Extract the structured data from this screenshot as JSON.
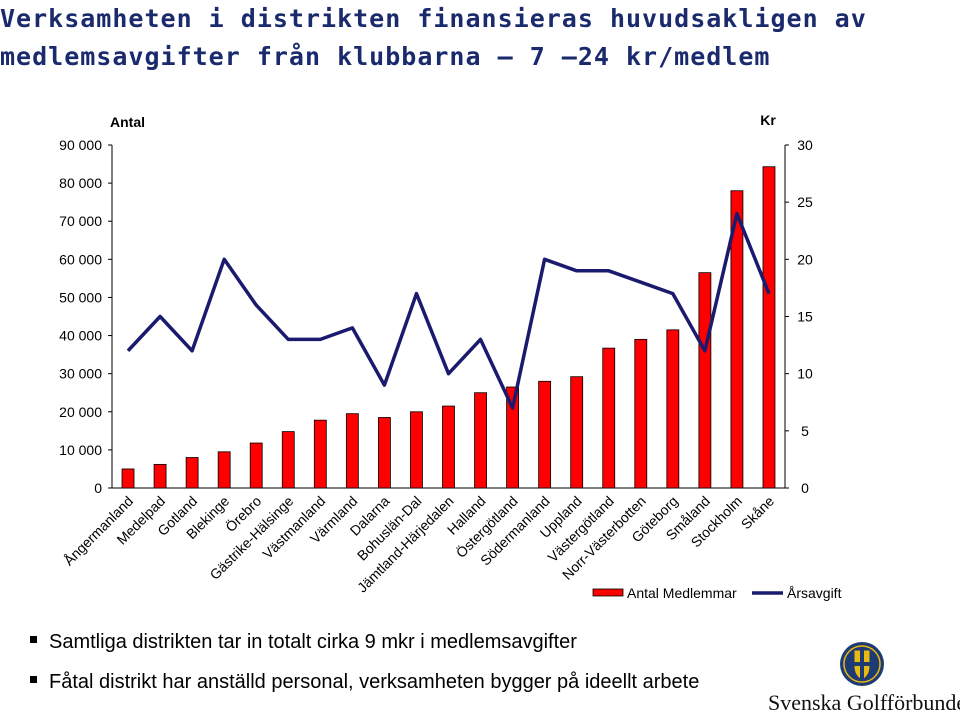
{
  "title": {
    "line1": "Verksamheten i distrikten finansieras huvudsakligen av",
    "line2": "medlemsavgifter från klubbarna — 7 –24 kr/medlem"
  },
  "chart_data": {
    "type": "bar",
    "categories": [
      "Ångermanland",
      "Medelpad",
      "Gotland",
      "Blekinge",
      "Örebro",
      "Gästrike-Hälsinge",
      "Västmanland",
      "Värmland",
      "Dalarna",
      "Bohuslän-Dal",
      "Jämtland-Härjedalen",
      "Halland",
      "Östergötland",
      "Södermanland",
      "Uppland",
      "Västergötland",
      "Norr-Västerbotten",
      "Göteborg",
      "Småland",
      "Stockholm",
      "Skåne"
    ],
    "left_axis": {
      "title": "Antal",
      "ylim": [
        0,
        90000
      ],
      "ticks": [
        "0",
        "10 000",
        "20 000",
        "30 000",
        "40 000",
        "50 000",
        "60 000",
        "70 000",
        "80 000",
        "90 000"
      ]
    },
    "right_axis": {
      "title": "Kr",
      "ylim": [
        0,
        30
      ],
      "ticks": [
        "0",
        "5",
        "10",
        "15",
        "20",
        "25",
        "30"
      ]
    },
    "series": [
      {
        "name": "Antal Medlemmar",
        "type": "bar",
        "axis": "left",
        "color": "#ff0000",
        "values": [
          5000,
          6200,
          8000,
          9500,
          11800,
          14800,
          17800,
          19500,
          18500,
          20000,
          21500,
          25000,
          26500,
          28000,
          29200,
          36700,
          39000,
          41500,
          56500,
          78000,
          84300
        ]
      },
      {
        "name": "Årsavgift",
        "type": "line",
        "axis": "right",
        "color": "#1a1a6e",
        "values": [
          12,
          15,
          12,
          20,
          16,
          13,
          13,
          14,
          9,
          17,
          10,
          13,
          7,
          20,
          19,
          19,
          18,
          17,
          12,
          24,
          17
        ]
      }
    ],
    "legend": "bottom-right",
    "grid": false
  },
  "bullets": [
    "Samtliga distrikten tar in totalt cirka 9 mkr i medlemsavgifter",
    "Fåtal distrikt har anställd personal, verksamheten bygger på ideellt arbete"
  ],
  "logo": {
    "text": "Svenska Golfförbundet",
    "colors": {
      "navy": "#1f3b73",
      "gold": "#e8b90f"
    }
  }
}
